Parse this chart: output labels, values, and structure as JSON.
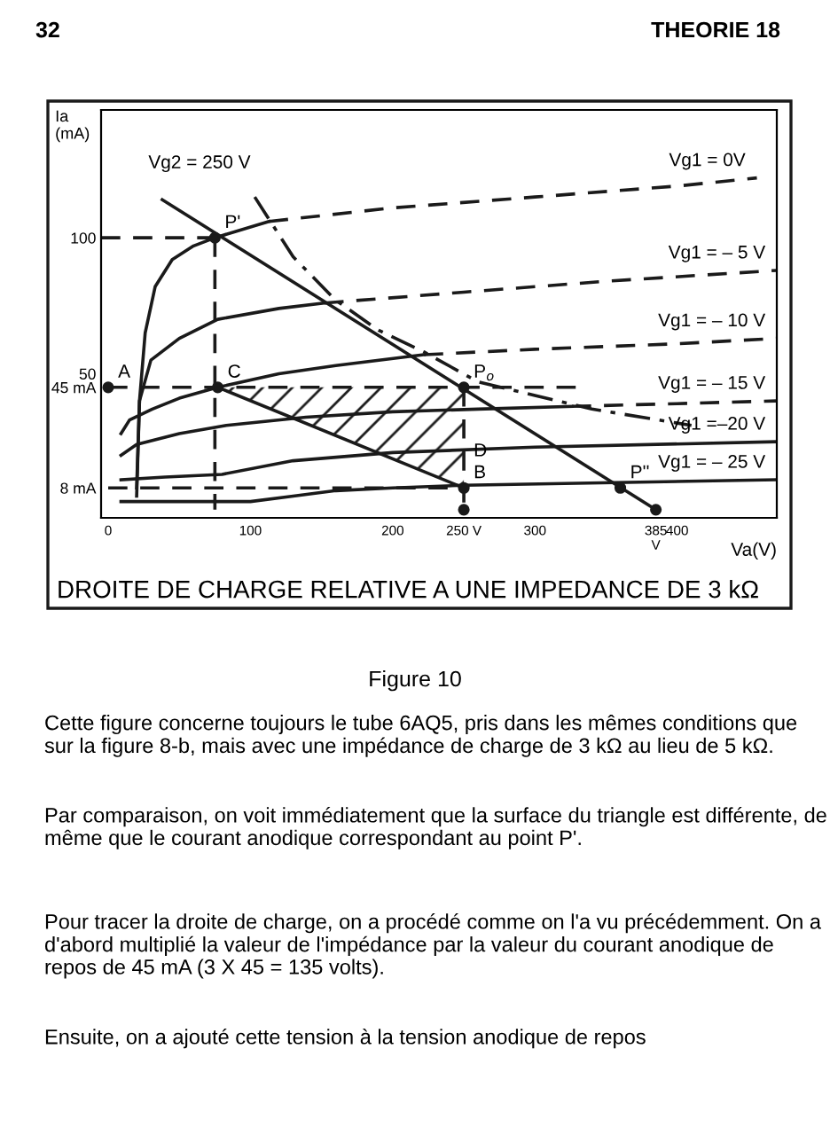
{
  "chart_data": {
    "type": "line",
    "xlabel": "Va(V)",
    "ylabel": "Ia\n(mA)",
    "xlim": [
      -5,
      470
    ],
    "ylim": [
      -3,
      147
    ],
    "xticks": [
      0,
      100,
      200,
      {
        "value": 250,
        "label": "250 V"
      },
      300,
      {
        "value": 385,
        "label": "385 V"
      },
      400
    ],
    "yticks": [
      {
        "value": 8,
        "label": "8 mA"
      },
      {
        "value": 45,
        "label": "45\nmA"
      },
      50,
      100
    ],
    "grid": false,
    "legend": false,
    "series": [
      {
        "color": "#1a1a1a",
        "line_style": "solid",
        "x": [
          20,
          22,
          26,
          33,
          45,
          60,
          75,
          113
        ],
        "values": [
          8,
          40,
          65,
          82,
          92,
          97,
          100,
          106
        ]
      },
      {
        "name": "Vg1 = 0V",
        "color": "#1a1a1a",
        "line_style": "dashed",
        "x": [
          113,
          200,
          300,
          400,
          456
        ],
        "values": [
          106,
          111,
          115,
          119,
          122
        ]
      },
      {
        "color": "#1a1a1a",
        "line_style": "solid",
        "x": [
          20,
          22,
          30,
          50,
          77,
          120,
          152
        ],
        "values": [
          5,
          40,
          55,
          63,
          70,
          74,
          76
        ]
      },
      {
        "name": "Vg1 = – 5 V",
        "color": "#1a1a1a",
        "line_style": "dashed",
        "x": [
          152,
          250,
          350,
          470
        ],
        "values": [
          76,
          80,
          84,
          88
        ]
      },
      {
        "color": "#1a1a1a",
        "line_style": "solid",
        "x": [
          9,
          15,
          31,
          50,
          77,
          120,
          160,
          222
        ],
        "values": [
          28,
          33,
          37,
          41,
          45,
          50,
          53,
          57
        ]
      },
      {
        "name": "Vg1 = – 10 V",
        "color": "#1a1a1a",
        "line_style": "dashed",
        "x": [
          222,
          300,
          400,
          470
        ],
        "values": [
          57,
          59,
          61,
          63
        ]
      },
      {
        "color": "#1a1a1a",
        "line_style": "solid",
        "x": [
          9,
          20,
          50,
          83,
          139,
          200,
          260,
          326
        ],
        "values": [
          20,
          24,
          28,
          31,
          34,
          36,
          37,
          38
        ]
      },
      {
        "name": "Vg1 = – 15 V",
        "color": "#1a1a1a",
        "line_style": "dashed",
        "x": [
          326,
          400,
          470
        ],
        "values": [
          38,
          39,
          40
        ]
      },
      {
        "name": "Vg1 =–20 V",
        "color": "#1a1a1a",
        "line_style": "solid",
        "x": [
          9,
          40,
          80,
          130,
          200,
          300,
          470
        ],
        "values": [
          11,
          12,
          13,
          18,
          21,
          23,
          25
        ]
      },
      {
        "name": "Vg1 = – 25 V",
        "color": "#1a1a1a",
        "line_style": "solid",
        "x": [
          9,
          100,
          130,
          160,
          200,
          250,
          470
        ],
        "values": [
          3,
          3,
          5,
          7,
          8,
          9,
          11
        ]
      },
      {
        "color": "#1a1a1a",
        "line_style": "dashdot",
        "x": [
          103,
          130,
          160,
          190,
          222,
          260,
          300,
          340,
          410
        ],
        "values": [
          115,
          93,
          77,
          66,
          58,
          47,
          42,
          37,
          31
        ]
      },
      {
        "color": "#1a1a1a",
        "line_style": "solid",
        "x": [
          38,
          385
        ],
        "values": [
          114,
          0
        ]
      },
      {
        "color": "#1a1a1a",
        "line_style": "solid",
        "x": [
          77,
          250
        ],
        "values": [
          45,
          8
        ]
      },
      {
        "color": "#1a1a1a",
        "line_style": "dashed",
        "x": [
          -5,
          75
        ],
        "values": [
          100,
          100
        ]
      },
      {
        "color": "#1a1a1a",
        "line_style": "dashed",
        "x": [
          75,
          75
        ],
        "values": [
          100,
          0
        ]
      },
      {
        "color": "#1a1a1a",
        "line_style": "dashed",
        "x": [
          0,
          330
        ],
        "values": [
          45,
          45
        ]
      },
      {
        "color": "#1a1a1a",
        "line_style": "dashed",
        "x": [
          250,
          250
        ],
        "values": [
          45,
          0
        ]
      },
      {
        "color": "#1a1a1a",
        "line_style": "dashed",
        "x": [
          0,
          250
        ],
        "values": [
          8,
          8
        ]
      },
      {
        "type": "scatter",
        "color": "#1a1a1a",
        "marker": "circle",
        "x": [
          0,
          75,
          77,
          250,
          250,
          250,
          360,
          385
        ],
        "values": [
          45,
          100,
          45,
          45,
          8,
          0,
          8,
          0
        ]
      }
    ],
    "annotations": [
      "32",
      "THEORIE 18",
      "Vg2 = 250 V",
      "DROITE DE CHARGE RELATIVE A UNE IMPEDANCE DE 3 kΩ",
      "Figure 10",
      "Cette figure concerne toujours le tube 6AQ5, pris dans les mêmes conditions que sur la figure 8-b, mais avec une impédance de charge de 3 kΩ au lieu de 5 kΩ.",
      "Par comparaison, on voit immédiatement que la surface du triangle est différente, de même que le courant anodique correspondant au point P'.",
      "Pour tracer la droite de charge, on a procédé comme on l'a vu précédemment. On a d'abord multiplié la valeur de l'impédance par la valeur du courant anodique de repos de 45 mA (3 X 45 = 135 volts).",
      "Ensuite, on a ajouté cette tension à la tension anodique de repos",
      {
        "text": "A",
        "x": 0,
        "y": 45
      },
      {
        "text": "P'",
        "x": 75,
        "y": 100
      },
      {
        "text": "C",
        "x": 77,
        "y": 45
      },
      {
        "text": "P$_{o}$",
        "x": 250,
        "y": 45
      },
      {
        "text": "D",
        "x": 250,
        "y": 16
      },
      {
        "text": "B",
        "x": 250,
        "y": 8
      },
      {
        "text": "P''",
        "x": 360,
        "y": 8
      }
    ]
  }
}
